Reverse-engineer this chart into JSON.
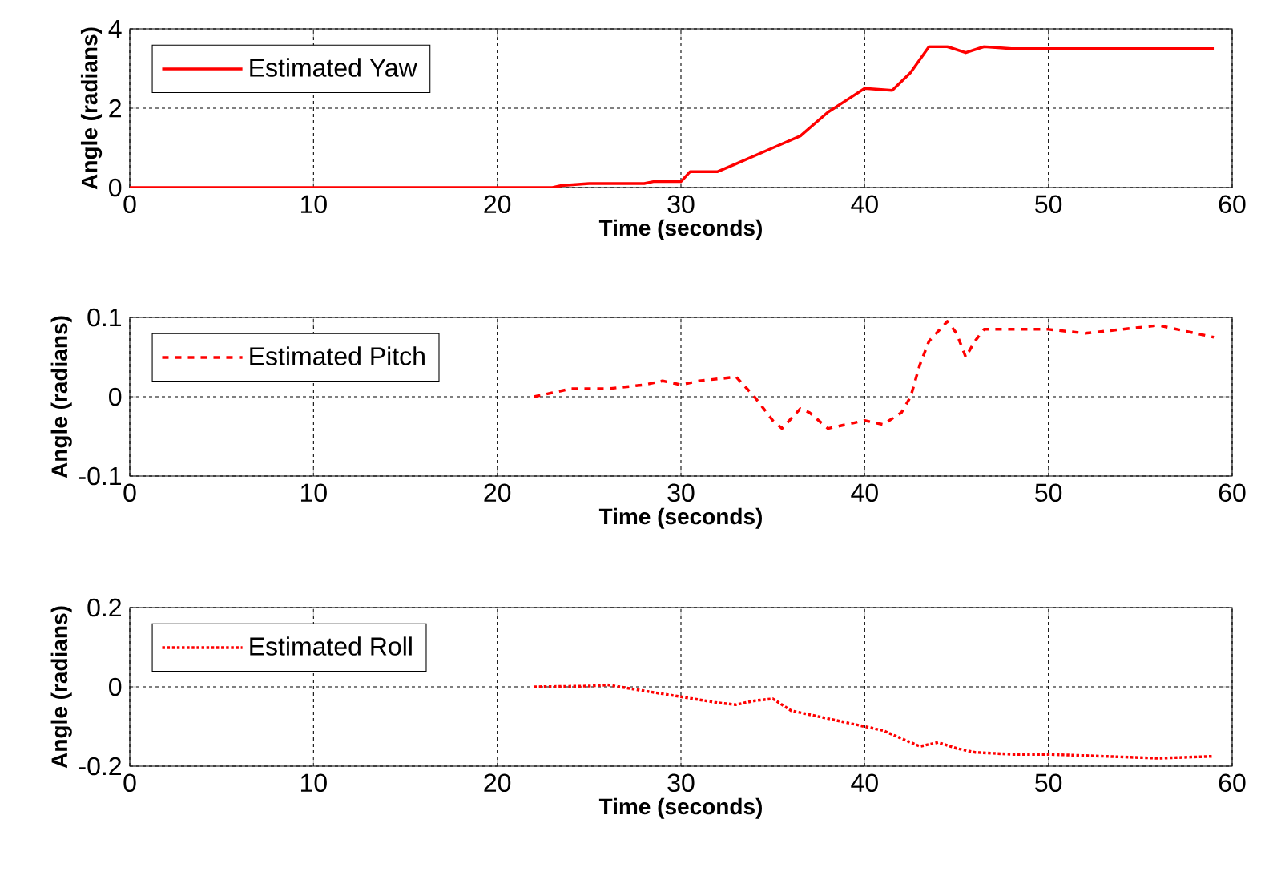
{
  "chart_data": [
    {
      "type": "line",
      "xlabel": "Time (seconds)",
      "ylabel": "Angle (radians)",
      "xlim": [
        0,
        60
      ],
      "ylim": [
        0,
        4
      ],
      "xticks": [
        0,
        10,
        20,
        30,
        40,
        50,
        60
      ],
      "yticks": [
        0,
        2,
        4
      ],
      "grid": true,
      "legend": "top left",
      "series": [
        {
          "name": "Estimated Yaw",
          "color": "#ff0000",
          "line_style": "solid",
          "x": [
            0,
            10,
            20,
            23,
            23.5,
            25,
            28,
            28.5,
            30,
            30.5,
            32,
            33,
            35,
            36.5,
            38,
            39,
            40,
            41.5,
            42.5,
            43.5,
            44.5,
            45.5,
            46.5,
            48,
            59
          ],
          "values": [
            0,
            0,
            0,
            0,
            0.05,
            0.1,
            0.1,
            0.15,
            0.15,
            0.4,
            0.4,
            0.6,
            1.0,
            1.3,
            1.9,
            2.2,
            2.5,
            2.45,
            2.9,
            3.55,
            3.55,
            3.4,
            3.55,
            3.5,
            3.5
          ]
        }
      ]
    },
    {
      "type": "line",
      "xlabel": "Time (seconds)",
      "ylabel": "Angle (radians)",
      "xlim": [
        0,
        60
      ],
      "ylim": [
        -0.1,
        0.1
      ],
      "xticks": [
        0,
        10,
        20,
        30,
        40,
        50,
        60
      ],
      "yticks": [
        -0.1,
        0,
        0.1
      ],
      "grid": true,
      "legend": "top left",
      "series": [
        {
          "name": "Estimated Pitch",
          "color": "#ff0000",
          "line_style": "dashed",
          "x": [
            22,
            23,
            24,
            26,
            28,
            29,
            30,
            31,
            33,
            34,
            35,
            35.5,
            36.5,
            37,
            38,
            39,
            40,
            41,
            42,
            42.5,
            43,
            43.5,
            44.5,
            45,
            45.5,
            46,
            46.5,
            48,
            50,
            52,
            54,
            56,
            58,
            59
          ],
          "values": [
            0,
            0.005,
            0.01,
            0.01,
            0.015,
            0.02,
            0.015,
            0.02,
            0.025,
            0.0,
            -0.03,
            -0.04,
            -0.015,
            -0.02,
            -0.04,
            -0.035,
            -0.03,
            -0.035,
            -0.02,
            0.0,
            0.04,
            0.07,
            0.095,
            0.08,
            0.05,
            0.07,
            0.085,
            0.085,
            0.085,
            0.08,
            0.085,
            0.09,
            0.08,
            0.075
          ]
        }
      ]
    },
    {
      "type": "line",
      "xlabel": "Time (seconds)",
      "ylabel": "Angle (radians)",
      "xlim": [
        0,
        60
      ],
      "ylim": [
        -0.2,
        0.2
      ],
      "xticks": [
        0,
        10,
        20,
        30,
        40,
        50,
        60
      ],
      "yticks": [
        -0.2,
        0,
        0.2
      ],
      "grid": true,
      "legend": "top left",
      "series": [
        {
          "name": "Estimated Roll",
          "color": "#ff0000",
          "line_style": "dotted",
          "x": [
            22,
            25,
            26,
            28,
            30,
            32,
            33,
            34,
            35,
            36,
            38,
            40,
            41,
            42,
            43,
            44,
            45,
            46,
            48,
            50,
            53,
            56,
            59
          ],
          "values": [
            0,
            0.002,
            0.005,
            -0.01,
            -0.025,
            -0.04,
            -0.045,
            -0.035,
            -0.03,
            -0.06,
            -0.08,
            -0.1,
            -0.11,
            -0.13,
            -0.15,
            -0.14,
            -0.155,
            -0.165,
            -0.17,
            -0.17,
            -0.175,
            -0.18,
            -0.175
          ]
        }
      ]
    }
  ]
}
